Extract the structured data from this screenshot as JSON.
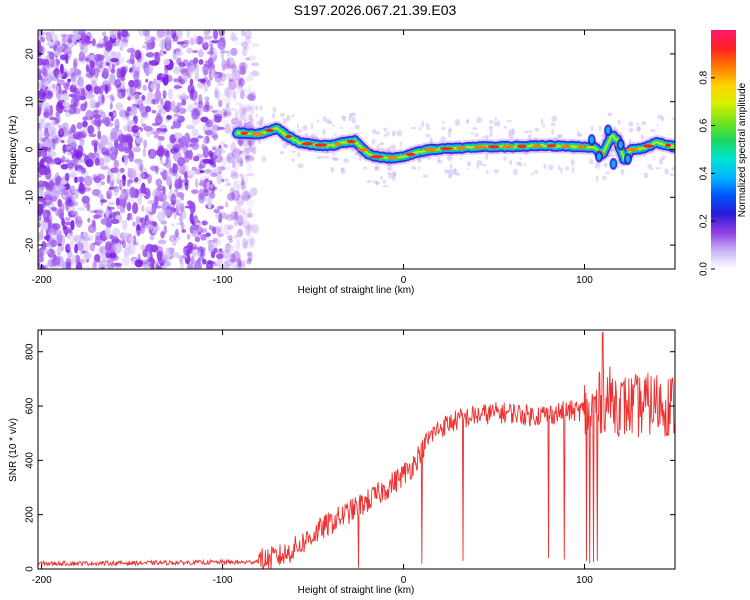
{
  "title": "S197.2026.067.21.39.E03",
  "chart_data": [
    {
      "type": "heatmap",
      "title": "S197.2026.067.21.39.E03",
      "xlabel": "Height of straight line (km)",
      "ylabel": "Frequency (Hz)",
      "xlim": [
        -202,
        150
      ],
      "ylim": [
        -25,
        25
      ],
      "xticks": [
        -200,
        -100,
        0,
        100
      ],
      "yticks": [
        -20,
        -10,
        0,
        10,
        20
      ],
      "colorbar": {
        "label": "Normalized spectral amplitude",
        "range": [
          0.0,
          1.0
        ],
        "ticks": [
          "0.0",
          "0.2",
          "0.4",
          "0.6",
          "0.8"
        ],
        "colors": [
          "#ffffff",
          "#c9b3f5",
          "#8f3ce6",
          "#2a1ad8",
          "#0057ff",
          "#00b7ff",
          "#00e5d0",
          "#1ed760",
          "#74e51a",
          "#d8f000",
          "#ffd200",
          "#ff7a00",
          "#ff2020",
          "#ff1a6e"
        ]
      },
      "signal_track": {
        "x": [
          -92,
          -80,
          -70,
          -65,
          -58,
          -50,
          -40,
          -32,
          -27,
          -20,
          -15,
          -8,
          0,
          8,
          15,
          25,
          40,
          60,
          80,
          95,
          105,
          110,
          115,
          118,
          122,
          126,
          132,
          140,
          150
        ],
        "freq": [
          3.5,
          3.2,
          4.5,
          3.0,
          1.5,
          1.0,
          0.8,
          1.5,
          1.8,
          -0.8,
          -1.5,
          -1.8,
          -1.5,
          -0.5,
          0.0,
          0.2,
          0.5,
          0.6,
          0.8,
          0.6,
          0.5,
          -1.0,
          3.0,
          2.0,
          -2.0,
          0.0,
          0.2,
          1.5,
          0.5
        ]
      }
    },
    {
      "type": "line",
      "xlabel": "Height of straight line (km)",
      "ylabel": "SNR (10 * v/v)",
      "xlim": [
        -202,
        150
      ],
      "ylim": [
        0,
        880
      ],
      "xticks": [
        -200,
        -100,
        0,
        100
      ],
      "yticks": [
        0,
        200,
        400,
        600,
        800
      ],
      "color": "#ee3030",
      "envelope": {
        "x": [
          -202,
          -150,
          -100,
          -85,
          -75,
          -65,
          -55,
          -45,
          -35,
          -25,
          -15,
          -5,
          5,
          10,
          15,
          20,
          30,
          40,
          50,
          60,
          70,
          80,
          90,
          100,
          105,
          110,
          115,
          120,
          130,
          140,
          150
        ],
        "snr": [
          20,
          22,
          25,
          25,
          35,
          55,
          100,
          150,
          190,
          230,
          270,
          320,
          380,
          440,
          490,
          520,
          550,
          565,
          575,
          575,
          565,
          570,
          580,
          585,
          590,
          620,
          630,
          600,
          600,
          610,
          600
        ]
      },
      "drops": [
        {
          "x": -25,
          "snr": 5
        },
        {
          "x": 10,
          "snr": 20
        },
        {
          "x": 33,
          "snr": 30
        },
        {
          "x": 80,
          "snr": 40
        },
        {
          "x": 89,
          "snr": 35
        },
        {
          "x": 101,
          "snr": 30
        },
        {
          "x": 103,
          "snr": 20
        },
        {
          "x": 105,
          "snr": 25
        },
        {
          "x": 107,
          "snr": 30
        }
      ],
      "peak": {
        "x": 110,
        "snr": 870
      }
    }
  ]
}
